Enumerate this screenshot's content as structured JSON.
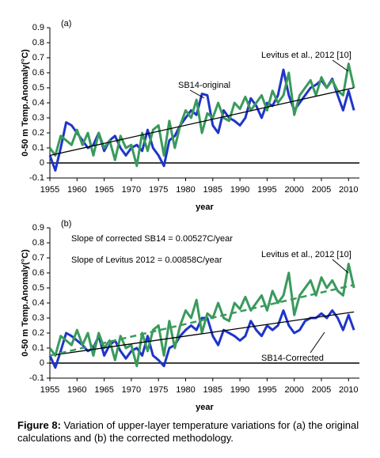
{
  "chart_data": [
    {
      "type": "line",
      "panel_label": "(a)",
      "x_label": "year",
      "y_label": "0-50 m Temp.Anomaly(°C)",
      "xlim": [
        1955,
        2012
      ],
      "ylim": [
        -0.1,
        0.9
      ],
      "xticks": [
        1955,
        1960,
        1965,
        1970,
        1975,
        1980,
        1985,
        1990,
        1995,
        2000,
        2005,
        2010
      ],
      "yticks": [
        -0.1,
        0,
        0.1,
        0.2,
        0.3,
        0.4,
        0.5,
        0.6,
        0.7,
        0.8,
        0.9
      ],
      "x": [
        1955,
        1956,
        1957,
        1958,
        1959,
        1960,
        1961,
        1962,
        1963,
        1964,
        1965,
        1966,
        1967,
        1968,
        1969,
        1970,
        1971,
        1972,
        1973,
        1974,
        1975,
        1976,
        1977,
        1978,
        1979,
        1980,
        1981,
        1982,
        1983,
        1984,
        1985,
        1986,
        1987,
        1988,
        1989,
        1990,
        1991,
        1992,
        1993,
        1994,
        1995,
        1996,
        1997,
        1998,
        1999,
        2000,
        2001,
        2002,
        2003,
        2004,
        2005,
        2006,
        2007,
        2008,
        2009,
        2010,
        2011
      ],
      "series": [
        {
          "name": "SB14-original",
          "color": "#1f35c8",
          "values": [
            0.05,
            -0.05,
            0.1,
            0.27,
            0.25,
            0.2,
            0.15,
            0.1,
            0.12,
            0.2,
            0.08,
            0.15,
            0.18,
            0.1,
            0.05,
            0.1,
            0.12,
            0.08,
            0.22,
            0.1,
            0.05,
            -0.02,
            0.15,
            0.18,
            0.25,
            0.3,
            0.35,
            0.32,
            0.46,
            0.45,
            0.25,
            0.2,
            0.35,
            0.3,
            0.28,
            0.25,
            0.3,
            0.43,
            0.38,
            0.3,
            0.4,
            0.38,
            0.45,
            0.62,
            0.45,
            0.35,
            0.4,
            0.45,
            0.5,
            0.52,
            0.55,
            0.5,
            0.56,
            0.45,
            0.35,
            0.48,
            0.35
          ]
        },
        {
          "name": "Levitus et al., 2012 [10]",
          "color": "#3a9a5c",
          "values": [
            0.1,
            0.05,
            0.18,
            0.15,
            0.12,
            0.22,
            0.12,
            0.2,
            0.05,
            0.2,
            0.1,
            0.15,
            0.02,
            0.18,
            0.1,
            0.12,
            -0.02,
            0.2,
            0.08,
            0.22,
            0.25,
            0.05,
            0.28,
            0.1,
            0.25,
            0.35,
            0.3,
            0.42,
            0.2,
            0.33,
            0.3,
            0.4,
            0.3,
            0.28,
            0.4,
            0.36,
            0.44,
            0.35,
            0.4,
            0.45,
            0.35,
            0.48,
            0.4,
            0.45,
            0.6,
            0.32,
            0.45,
            0.5,
            0.55,
            0.45,
            0.57,
            0.5,
            0.55,
            0.48,
            0.45,
            0.66,
            0.5
          ]
        },
        {
          "color": "#000000",
          "x": [
            1955,
            2011
          ],
          "values": [
            0.05,
            0.5
          ]
        }
      ]
    },
    {
      "type": "line",
      "panel_label": "(b)",
      "x_label": "year",
      "y_label": "0-50 m Temp.Anomaly(°C)",
      "xlim": [
        1955,
        2012
      ],
      "ylim": [
        -0.1,
        0.9
      ],
      "xticks": [
        1955,
        1960,
        1965,
        1970,
        1975,
        1980,
        1985,
        1990,
        1995,
        2000,
        2005,
        2010
      ],
      "yticks": [
        -0.1,
        0,
        0.1,
        0.2,
        0.3,
        0.4,
        0.5,
        0.6,
        0.7,
        0.8,
        0.9
      ],
      "annotations": [
        "Slope of corrected SB14 = 0.00527C/year",
        "Slope of Levitus 2012 = 0.00858C/year"
      ],
      "x": [
        1955,
        1956,
        1957,
        1958,
        1959,
        1960,
        1961,
        1962,
        1963,
        1964,
        1965,
        1966,
        1967,
        1968,
        1969,
        1970,
        1971,
        1972,
        1973,
        1974,
        1975,
        1976,
        1977,
        1978,
        1979,
        1980,
        1981,
        1982,
        1983,
        1984,
        1985,
        1986,
        1987,
        1988,
        1989,
        1990,
        1991,
        1992,
        1993,
        1994,
        1995,
        1996,
        1997,
        1998,
        1999,
        2000,
        2001,
        2002,
        2003,
        2004,
        2005,
        2006,
        2007,
        2008,
        2009,
        2010,
        2011
      ],
      "series": [
        {
          "name": "SB14-Corrected",
          "color": "#1f35c8",
          "values": [
            0.05,
            -0.03,
            0.08,
            0.2,
            0.18,
            0.15,
            0.12,
            0.08,
            0.1,
            0.18,
            0.05,
            0.12,
            0.15,
            0.08,
            0.03,
            0.08,
            0.1,
            0.05,
            0.18,
            0.05,
            0.02,
            -0.02,
            0.1,
            0.12,
            0.18,
            0.22,
            0.25,
            0.22,
            0.3,
            0.3,
            0.18,
            0.12,
            0.22,
            0.2,
            0.18,
            0.15,
            0.18,
            0.28,
            0.22,
            0.18,
            0.25,
            0.22,
            0.25,
            0.35,
            0.25,
            0.2,
            0.22,
            0.28,
            0.3,
            0.3,
            0.33,
            0.3,
            0.35,
            0.3,
            0.22,
            0.32,
            0.22
          ]
        },
        {
          "name": "Levitus et al., 2012 [10]",
          "color": "#3a9a5c",
          "values": [
            0.1,
            0.05,
            0.18,
            0.15,
            0.12,
            0.22,
            0.12,
            0.2,
            0.05,
            0.2,
            0.1,
            0.15,
            0.02,
            0.18,
            0.1,
            0.12,
            -0.02,
            0.2,
            0.08,
            0.22,
            0.25,
            0.05,
            0.28,
            0.1,
            0.25,
            0.35,
            0.3,
            0.42,
            0.2,
            0.33,
            0.3,
            0.4,
            0.3,
            0.28,
            0.4,
            0.36,
            0.44,
            0.35,
            0.4,
            0.45,
            0.35,
            0.48,
            0.4,
            0.45,
            0.6,
            0.32,
            0.45,
            0.5,
            0.55,
            0.45,
            0.57,
            0.5,
            0.55,
            0.48,
            0.45,
            0.66,
            0.5
          ]
        },
        {
          "color": "#000000",
          "x": [
            1955,
            2011
          ],
          "values": [
            0.05,
            0.34
          ]
        },
        {
          "color": "#3a9a5c",
          "dashed": true,
          "x": [
            1955,
            2011
          ],
          "values": [
            0.05,
            0.52
          ]
        }
      ]
    }
  ],
  "caption": {
    "label": "Figure 8:",
    "text": "Variation of upper-layer temperature variations for (a) the original calculations and (b) the corrected methodology."
  }
}
